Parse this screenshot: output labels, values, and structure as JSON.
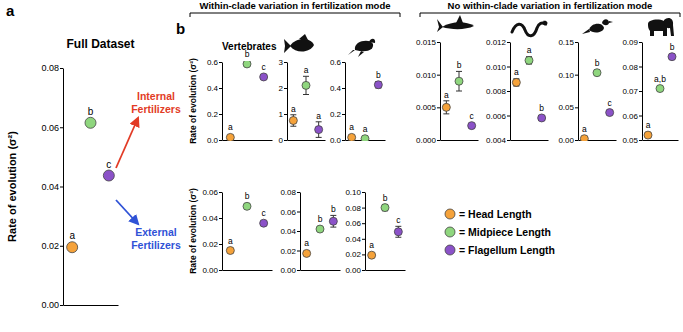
{
  "panel_labels": [
    "a",
    "b"
  ],
  "headers": [
    "Within-clade variation in fertilization mode",
    "No within-clade variation in fertilization mode"
  ],
  "clade_label": "Vertebrates",
  "groups": [
    {
      "text": "Internal Fertilizers",
      "color": "#e23b26"
    },
    {
      "text": "External Fertilizers",
      "color": "#2f52d6"
    }
  ],
  "legend": [
    {
      "name": "= Head Length",
      "color": "#f5a23a"
    },
    {
      "name": "= Midpiece Length",
      "color": "#8fd67e"
    },
    {
      "name": "= Flagellum Length",
      "color": "#8b52c8"
    }
  ],
  "chart_data": [
    {
      "type": "scatter",
      "title": "Full Dataset",
      "y_label": "Rate of evolution (σ²)",
      "categories": [
        null,
        null,
        null
      ],
      "values": [
        0.0195,
        0.0615,
        0.0437
      ],
      "errors": [
        0.0005,
        0.001,
        0.0008
      ],
      "annotations": [
        "a",
        "b",
        "c"
      ],
      "colors": [
        "#f5a23a",
        "#8fd67e",
        "#8b52c8"
      ],
      "ylim": [
        0,
        0.08
      ],
      "yticks": [
        {
          "value": 0,
          "label": "0.00"
        },
        0.02,
        0.04,
        0.06,
        0.08
      ],
      "tick_labels": "y"
    },
    {
      "type": "scatter",
      "y_label": "Rate of evolution (σ²)",
      "categories": [
        null,
        null,
        null
      ],
      "values": [
        0.02,
        0.585,
        0.485
      ],
      "errors": [
        0.005,
        0.008,
        0.006
      ],
      "annotations": [
        "a",
        "b",
        "c"
      ],
      "colors": [
        "#f5a23a",
        "#8fd67e",
        "#8b52c8"
      ],
      "ylim": [
        0,
        0.6
      ],
      "yticks": [
        {
          "value": 0,
          "label": "0.0"
        },
        0.2,
        0.4,
        0.6
      ],
      "tick_labels": "y"
    },
    {
      "type": "scatter",
      "categories": [
        null,
        null,
        null
      ],
      "values": [
        0.75,
        2.1,
        0.4
      ],
      "errors": [
        0.22,
        0.35,
        0.3
      ],
      "annotations": [
        "a",
        "a",
        "a"
      ],
      "colors": [
        "#f5a23a",
        "#8fd67e",
        "#8b52c8"
      ],
      "ylim": [
        0,
        3
      ],
      "yticks": [
        0,
        1,
        2,
        3
      ],
      "tick_labels": "y"
    },
    {
      "type": "scatter",
      "categories": [
        null,
        null,
        null
      ],
      "values": [
        0.02,
        0.01,
        0.425
      ],
      "errors": [
        0.01,
        0.005,
        0.025
      ],
      "annotations": [
        "a",
        "a",
        "b"
      ],
      "colors": [
        "#f5a23a",
        "#8fd67e",
        "#8b52c8"
      ],
      "ylim": [
        0,
        0.6
      ],
      "yticks": [
        {
          "value": 0,
          "label": "0.0"
        },
        0.2,
        0.4,
        0.6
      ],
      "tick_labels": "y"
    },
    {
      "type": "scatter",
      "categories": [
        null,
        null,
        null
      ],
      "values": [
        0.005,
        0.009,
        0.0022
      ],
      "errors": [
        0.001,
        0.0015,
        0.0003
      ],
      "annotations": [
        "a",
        "b",
        "c"
      ],
      "colors": [
        "#f5a23a",
        "#8fd67e",
        "#8b52c8"
      ],
      "ylim": [
        0,
        0.015
      ],
      "yticks": [
        {
          "value": 0,
          "label": "0.000"
        },
        0.005,
        {
          "value": 0.01,
          "label": "0.010"
        },
        0.015
      ],
      "tick_labels": "y"
    },
    {
      "type": "scatter",
      "categories": [
        null,
        null,
        null
      ],
      "values": [
        0.0087,
        0.0105,
        0.0058
      ],
      "errors": [
        0.0003,
        0.0003,
        0.0002
      ],
      "annotations": [
        "a",
        "a",
        "b"
      ],
      "colors": [
        "#f5a23a",
        "#8fd67e",
        "#8b52c8"
      ],
      "ylim": [
        0.004,
        0.012
      ],
      "yticks": [
        0.004,
        0.006,
        0.008,
        {
          "value": 0.01,
          "label": "0.010"
        },
        0.012
      ],
      "tick_labels": "y"
    },
    {
      "type": "scatter",
      "categories": [
        null,
        null,
        null
      ],
      "values": [
        0.002,
        0.103,
        0.042
      ],
      "errors": [
        0.0005,
        0.002,
        0.001
      ],
      "annotations": [
        "a",
        "b",
        "c"
      ],
      "colors": [
        "#f5a23a",
        "#8fd67e",
        "#8b52c8"
      ],
      "ylim": [
        0,
        0.15
      ],
      "yticks": [
        {
          "value": 0,
          "label": "0.00"
        },
        0.05,
        {
          "value": 0.1,
          "label": "0.10"
        },
        0.15
      ],
      "tick_labels": "y"
    },
    {
      "type": "scatter",
      "categories": [
        null,
        null,
        null
      ],
      "values": [
        0.052,
        0.071,
        0.084
      ],
      "errors": [
        0.0005,
        0.0005,
        0.0008
      ],
      "annotations": [
        "a",
        "a,b",
        "b"
      ],
      "colors": [
        "#f5a23a",
        "#8fd67e",
        "#8b52c8"
      ],
      "ylim": [
        0.05,
        0.09
      ],
      "yticks": [
        0.05,
        0.06,
        0.07,
        0.08,
        0.09
      ],
      "tick_labels": "y"
    },
    {
      "type": "scatter",
      "y_label": "Rate of evolution (σ²)",
      "categories": [
        null,
        null,
        null
      ],
      "values": [
        0.015,
        0.049,
        0.036
      ],
      "errors": [
        0.001,
        0.001,
        0.0008
      ],
      "annotations": [
        "a",
        "b",
        "c"
      ],
      "colors": [
        "#f5a23a",
        "#8fd67e",
        "#8b52c8"
      ],
      "ylim": [
        0,
        0.06
      ],
      "yticks": [
        {
          "value": 0,
          "label": "0.00"
        },
        0.02,
        0.04,
        0.06
      ],
      "tick_labels": "y"
    },
    {
      "type": "scatter",
      "categories": [
        null,
        null,
        null
      ],
      "values": [
        0.017,
        0.042,
        0.05
      ],
      "errors": [
        0.001,
        0.001,
        0.006
      ],
      "annotations": [
        "a",
        "b",
        "b"
      ],
      "colors": [
        "#f5a23a",
        "#8fd67e",
        "#8b52c8"
      ],
      "ylim": [
        0,
        0.08
      ],
      "yticks": [
        {
          "value": 0,
          "label": "0.00"
        },
        0.02,
        0.04,
        0.06,
        0.08
      ],
      "tick_labels": "y"
    },
    {
      "type": "scatter",
      "categories": [
        null,
        null,
        null
      ],
      "values": [
        0.019,
        0.08,
        0.049
      ],
      "errors": [
        0.001,
        0.004,
        0.007
      ],
      "annotations": [
        "a",
        "b",
        "c"
      ],
      "colors": [
        "#f5a23a",
        "#8fd67e",
        "#8b52c8"
      ],
      "ylim": [
        0,
        0.1
      ],
      "yticks": [
        {
          "value": 0,
          "label": "0.00"
        },
        0.02,
        0.04,
        0.06,
        0.08,
        {
          "value": 0.1,
          "label": "0.10"
        }
      ],
      "tick_labels": "y"
    }
  ]
}
